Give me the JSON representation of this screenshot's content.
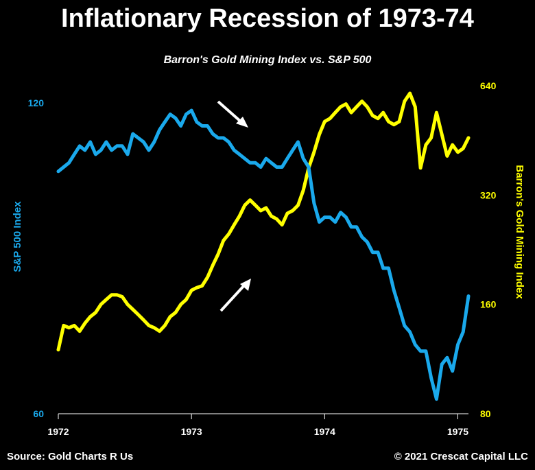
{
  "title": "Inflationary Recession of 1973-74",
  "subtitle": "Barron's Gold Mining Index vs. S&P 500",
  "footer": {
    "source": "Source: Gold Charts R Us",
    "copyright": "© 2021 Crescat Capital LLC"
  },
  "colors": {
    "sp500": "#1aa9ec",
    "gold": "#ffff00",
    "axis": "#ffffff",
    "arrow": "#ffffff",
    "background": "#000000"
  },
  "chart_data": {
    "type": "line",
    "title": "Barron's Gold Mining Index vs. S&P 500",
    "x_ticks": [
      "1972",
      "1973",
      "1974",
      "1975"
    ],
    "xlim": [
      1972.0,
      1975.08
    ],
    "y_left": {
      "label": "S&P 500 Index",
      "ticks": [
        "120",
        "60"
      ],
      "ylim": [
        60,
        120
      ],
      "scale": "log"
    },
    "y_right": {
      "label": "Barron's Gold Mining Index",
      "ticks": [
        "640",
        "320",
        "160",
        "80"
      ],
      "ylim": [
        80,
        640
      ],
      "scale": "log"
    },
    "grid": false,
    "legend": "none",
    "series": [
      {
        "axis": "left",
        "x": [
          1972.0,
          1972.04,
          1972.08,
          1972.12,
          1972.16,
          1972.2,
          1972.24,
          1972.28,
          1972.32,
          1972.36,
          1972.4,
          1972.44,
          1972.48,
          1972.52,
          1972.56,
          1972.6,
          1972.64,
          1972.68,
          1972.72,
          1972.76,
          1972.8,
          1972.84,
          1972.88,
          1972.92,
          1972.96,
          1973.0,
          1973.04,
          1973.08,
          1973.12,
          1973.16,
          1973.2,
          1973.24,
          1973.28,
          1973.32,
          1973.36,
          1973.4,
          1973.44,
          1973.48,
          1973.52,
          1973.56,
          1973.6,
          1973.64,
          1973.68,
          1973.72,
          1973.76,
          1973.8,
          1973.84,
          1973.88,
          1973.92,
          1973.96,
          1974.0,
          1974.04,
          1974.08,
          1974.12,
          1974.16,
          1974.2,
          1974.24,
          1974.28,
          1974.32,
          1974.36,
          1974.4,
          1974.44,
          1974.48,
          1974.52,
          1974.56,
          1974.6,
          1974.64,
          1974.68,
          1974.72,
          1974.76,
          1974.8,
          1974.84,
          1974.88,
          1974.92,
          1974.96,
          1975.0,
          1975.04,
          1975.08
        ],
        "y": [
          103,
          104,
          105,
          107,
          109,
          108,
          110,
          107,
          108,
          110,
          108,
          109,
          109,
          107,
          112,
          111,
          110,
          108,
          110,
          113,
          115,
          117,
          116,
          114,
          117,
          118,
          115,
          114,
          114,
          112,
          111,
          111,
          110,
          108,
          107,
          106,
          105,
          105,
          104,
          106,
          105,
          104,
          104,
          106,
          108,
          110,
          106,
          104,
          96,
          92,
          93,
          93,
          92,
          94,
          93,
          91,
          91,
          89,
          88,
          86,
          86,
          83,
          83,
          79,
          76,
          73,
          72,
          70,
          69,
          69,
          65,
          62,
          67,
          68,
          66,
          70,
          72,
          78
        ]
      },
      {
        "axis": "right",
        "x": [
          1972.0,
          1972.04,
          1972.08,
          1972.12,
          1972.16,
          1972.2,
          1972.24,
          1972.28,
          1972.32,
          1972.36,
          1972.4,
          1972.44,
          1972.48,
          1972.52,
          1972.56,
          1972.6,
          1972.64,
          1972.68,
          1972.72,
          1972.76,
          1972.8,
          1972.84,
          1972.88,
          1972.92,
          1972.96,
          1973.0,
          1973.04,
          1973.08,
          1973.12,
          1973.16,
          1973.2,
          1973.24,
          1973.28,
          1973.32,
          1973.36,
          1973.4,
          1973.44,
          1973.48,
          1973.52,
          1973.56,
          1973.6,
          1973.64,
          1973.68,
          1973.72,
          1973.76,
          1973.8,
          1973.84,
          1973.88,
          1973.92,
          1973.96,
          1974.0,
          1974.04,
          1974.08,
          1974.12,
          1974.16,
          1974.2,
          1974.24,
          1974.28,
          1974.32,
          1974.36,
          1974.4,
          1974.44,
          1974.48,
          1974.52,
          1974.56,
          1974.6,
          1974.64,
          1974.68,
          1974.72,
          1974.76,
          1974.8,
          1974.84,
          1974.88,
          1974.92,
          1974.96,
          1975.0,
          1975.04,
          1975.08
        ],
        "y": [
          120,
          140,
          138,
          140,
          135,
          142,
          148,
          152,
          160,
          165,
          170,
          170,
          168,
          160,
          155,
          150,
          145,
          140,
          138,
          135,
          140,
          148,
          152,
          160,
          165,
          175,
          178,
          180,
          190,
          205,
          220,
          240,
          250,
          265,
          280,
          300,
          310,
          300,
          290,
          295,
          280,
          275,
          265,
          285,
          290,
          300,
          330,
          380,
          420,
          470,
          510,
          520,
          540,
          560,
          570,
          540,
          560,
          580,
          560,
          530,
          520,
          540,
          510,
          500,
          510,
          580,
          610,
          560,
          380,
          440,
          460,
          540,
          470,
          410,
          440,
          420,
          430,
          460
        ]
      }
    ],
    "annotations": [
      {
        "type": "arrow",
        "direction": "down-right",
        "series": "S&P 500"
      },
      {
        "type": "arrow",
        "direction": "up-right",
        "series": "Barron's Gold Mining Index"
      }
    ]
  }
}
